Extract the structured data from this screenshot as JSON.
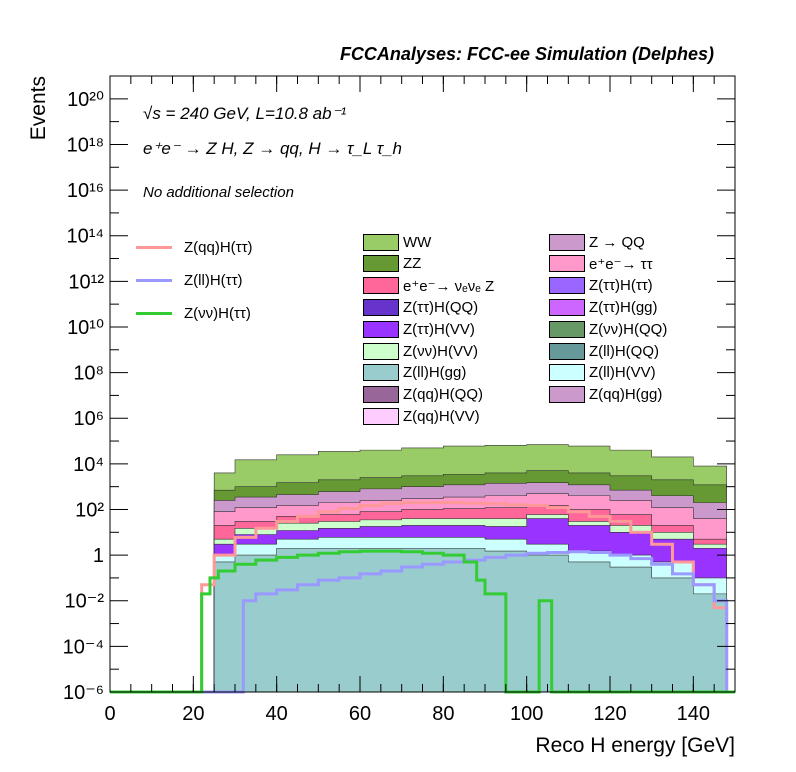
{
  "header": {
    "title": "FCCAnalyses: FCC-ee Simulation (Delphes)"
  },
  "annotations": {
    "energy": "√s = 240 GeV, L=10.8 ab⁻¹",
    "process": "e⁺e⁻ → Z H, Z → qq, H → τ_L τ_h",
    "selection": "No additional selection"
  },
  "chart_data": {
    "type": "histogram",
    "title": "FCCAnalyses: FCC-ee Simulation (Delphes)",
    "xlabel": "Reco H energy [GeV]",
    "ylabel": "Events",
    "xlim": [
      0,
      150
    ],
    "ylim": [
      1e-06,
      1e+21
    ],
    "yscale": "log",
    "x_ticks": [
      0,
      20,
      40,
      60,
      80,
      100,
      120,
      140
    ],
    "y_ticks": [
      {
        "value": 1e-06,
        "label": "10⁻⁶"
      },
      {
        "value": 0.0001,
        "label": "10⁻⁴"
      },
      {
        "value": 0.01,
        "label": "10⁻²"
      },
      {
        "value": 1,
        "label": "1"
      },
      {
        "value": 100.0,
        "label": "10²"
      },
      {
        "value": 10000.0,
        "label": "10⁴"
      },
      {
        "value": 1000000.0,
        "label": "10⁶"
      },
      {
        "value": 100000000.0,
        "label": "10⁸"
      },
      {
        "value": 10000000000.0,
        "label": "10¹⁰"
      },
      {
        "value": 1000000000000.0,
        "label": "10¹²"
      },
      {
        "value": 100000000000000.0,
        "label": "10¹⁴"
      },
      {
        "value": 1e+16,
        "label": "10¹⁶"
      },
      {
        "value": 1e+18,
        "label": "10¹⁸"
      },
      {
        "value": 1e+20,
        "label": "10²⁰"
      }
    ],
    "stacked_backgrounds_note": "approximate stack boundaries read from the image",
    "stack_layers": [
      {
        "name": "WW",
        "color": "#99cc66",
        "x": [
          25,
          30,
          40,
          50,
          60,
          70,
          80,
          90,
          100,
          110,
          120,
          130,
          140,
          148
        ],
        "top": [
          4000,
          15000,
          25000,
          35000,
          40000,
          50000,
          60000,
          65000,
          70000,
          60000,
          40000,
          20000,
          8000,
          5000
        ]
      },
      {
        "name": "ZZ",
        "color": "#669933",
        "x": [
          25,
          30,
          40,
          50,
          60,
          70,
          80,
          90,
          100,
          110,
          120,
          130,
          140,
          148
        ],
        "top": [
          700,
          1000,
          1500,
          2000,
          2500,
          3000,
          3500,
          4000,
          5000,
          4000,
          3000,
          2000,
          1200,
          900
        ]
      },
      {
        "name": "Z → QQ",
        "color": "#cc99cc",
        "x": [
          25,
          30,
          40,
          50,
          60,
          70,
          80,
          90,
          100,
          110,
          120,
          130,
          140,
          148
        ],
        "top": [
          250,
          350,
          450,
          600,
          800,
          1000,
          1200,
          1400,
          1500,
          1200,
          700,
          400,
          200,
          120
        ]
      },
      {
        "name": "e⁺e⁻→ ττ",
        "color": "#ff99cc",
        "x": [
          25,
          30,
          40,
          50,
          60,
          70,
          80,
          90,
          100,
          110,
          120,
          130,
          140,
          148
        ],
        "top": [
          80,
          120,
          150,
          200,
          250,
          300,
          350,
          400,
          500,
          400,
          250,
          120,
          40,
          20
        ]
      },
      {
        "name": "e⁺e⁻→ νₑνₑ Z",
        "color": "#ff6699",
        "x": [
          25,
          30,
          40,
          50,
          60,
          70,
          80,
          90,
          100,
          110,
          120,
          130,
          140,
          148
        ],
        "top": [
          20,
          30,
          50,
          60,
          80,
          100,
          110,
          120,
          150,
          100,
          60,
          20,
          5,
          2
        ]
      },
      {
        "name": "Z(νν)H(VV)",
        "color": "#ccffcc",
        "x": [
          25,
          30,
          40,
          50,
          60,
          70,
          80,
          90,
          100,
          110,
          120,
          130,
          140,
          148
        ],
        "top": [
          5,
          15,
          25,
          30,
          35,
          40,
          40,
          40,
          60,
          30,
          20,
          10,
          3,
          1
        ]
      },
      {
        "name": "Z(ττ)H(VV)",
        "color": "#9933ff",
        "x": [
          25,
          30,
          40,
          50,
          60,
          70,
          80,
          90,
          100,
          110,
          120,
          130,
          140,
          148
        ],
        "top": [
          3,
          8,
          12,
          15,
          18,
          20,
          20,
          18,
          40,
          20,
          10,
          5,
          2,
          0.5
        ]
      },
      {
        "name": "Z(ll)H(VV)",
        "color": "#ccffff",
        "x": [
          25,
          30,
          40,
          50,
          60,
          70,
          80,
          90,
          100,
          110,
          120,
          130,
          140,
          148
        ],
        "top": [
          1,
          3,
          5,
          6,
          6,
          6,
          6,
          5,
          3,
          1.5,
          1,
          0.5,
          0.1,
          0.05
        ]
      },
      {
        "name": "Z(ll)H(gg)",
        "color": "#99cccc",
        "x": [
          25,
          30,
          40,
          50,
          60,
          70,
          80,
          90,
          100,
          110,
          120,
          130,
          140,
          148
        ],
        "top": [
          0.5,
          1,
          2,
          2,
          2,
          2,
          2,
          1.5,
          1,
          0.5,
          0.3,
          0.1,
          0.02,
          0.003
        ]
      }
    ],
    "line_series": [
      {
        "name": "Z(qq)H(ττ)",
        "color": "#ff9999",
        "x": [
          0,
          20,
          22,
          25,
          30,
          35,
          40,
          45,
          50,
          55,
          60,
          65,
          70,
          75,
          80,
          85,
          90,
          95,
          100,
          105,
          110,
          115,
          120,
          125,
          130,
          135,
          140,
          145,
          148
        ],
        "y": [
          1e-06,
          1e-06,
          0.05,
          1,
          6,
          15,
          30,
          50,
          80,
          110,
          150,
          180,
          200,
          200,
          200,
          190,
          180,
          160,
          150,
          120,
          80,
          50,
          30,
          10,
          3,
          0.5,
          0.05,
          0.005,
          1e-06
        ]
      },
      {
        "name": "Z(ll)H(ττ)",
        "color": "#9999ff",
        "x": [
          0,
          30,
          32,
          35,
          40,
          45,
          50,
          55,
          60,
          65,
          70,
          75,
          80,
          85,
          90,
          95,
          100,
          105,
          110,
          115,
          120,
          125,
          130,
          135,
          140,
          145,
          148
        ],
        "y": [
          1e-06,
          1e-06,
          0.01,
          0.02,
          0.03,
          0.05,
          0.08,
          0.1,
          0.15,
          0.2,
          0.3,
          0.4,
          0.5,
          0.6,
          0.8,
          1,
          1.2,
          1.3,
          1.4,
          1.3,
          1,
          0.7,
          0.4,
          0.15,
          0.05,
          0.01,
          1e-06
        ]
      },
      {
        "name": "Z(νν)H(ττ)",
        "color": "#33cc33",
        "x": [
          0,
          20,
          22,
          24,
          26,
          30,
          35,
          40,
          45,
          50,
          55,
          60,
          65,
          70,
          75,
          80,
          85,
          88,
          90,
          92,
          95,
          100,
          103,
          105,
          106,
          110,
          150
        ],
        "y": [
          1e-06,
          1e-06,
          0.02,
          0.1,
          0.2,
          0.4,
          0.6,
          0.8,
          1,
          1.2,
          1.4,
          1.5,
          1.5,
          1.4,
          1.2,
          1.0,
          0.5,
          0.08,
          0.02,
          0.02,
          1e-06,
          1e-06,
          0.01,
          0.01,
          1e-06,
          1e-06,
          1e-06
        ]
      }
    ],
    "legend_columns": {
      "lines": [
        "Z(qq)H(ττ)",
        "Z(ll)H(ττ)",
        "Z(νν)H(ττ)"
      ],
      "stack_col1": [
        "WW",
        "ZZ",
        "e⁺e⁻→ νₑνₑ Z",
        "Z(ττ)H(QQ)",
        "Z(ττ)H(VV)",
        "Z(νν)H(VV)",
        "Z(ll)H(gg)",
        "Z(qq)H(QQ)",
        "Z(qq)H(VV)"
      ],
      "stack_col2": [
        "Z → QQ",
        "e⁺e⁻→ ττ",
        "Z(ττ)H(ττ)",
        "Z(ττ)H(gg)",
        "Z(νν)H(QQ)",
        "Z(ll)H(QQ)",
        "Z(ll)H(VV)",
        "Z(qq)H(gg)"
      ]
    },
    "legend_colors": {
      "Z(qq)H(ττ)": "#ff9999",
      "Z(ll)H(ττ)": "#9999ff",
      "Z(νν)H(ττ)": "#33cc33",
      "WW": "#99cc66",
      "ZZ": "#669933",
      "e⁺e⁻→ νₑνₑ Z": "#ff6699",
      "Z(ττ)H(QQ)": "#6633cc",
      "Z(ττ)H(VV)": "#9933ff",
      "Z(νν)H(VV)": "#ccffcc",
      "Z(ll)H(gg)": "#99cccc",
      "Z(qq)H(QQ)": "#996699",
      "Z(qq)H(VV)": "#ffccff",
      "Z → QQ": "#cc99cc",
      "e⁺e⁻→ ττ": "#ff99cc",
      "Z(ττ)H(ττ)": "#9966ff",
      "Z(ττ)H(gg)": "#cc66ff",
      "Z(νν)H(QQ)": "#669966",
      "Z(ll)H(QQ)": "#669999",
      "Z(ll)H(VV)": "#ccffff",
      "Z(qq)H(gg)": "#cc99cc"
    },
    "grid": false,
    "legend_position": "upper-middle"
  }
}
